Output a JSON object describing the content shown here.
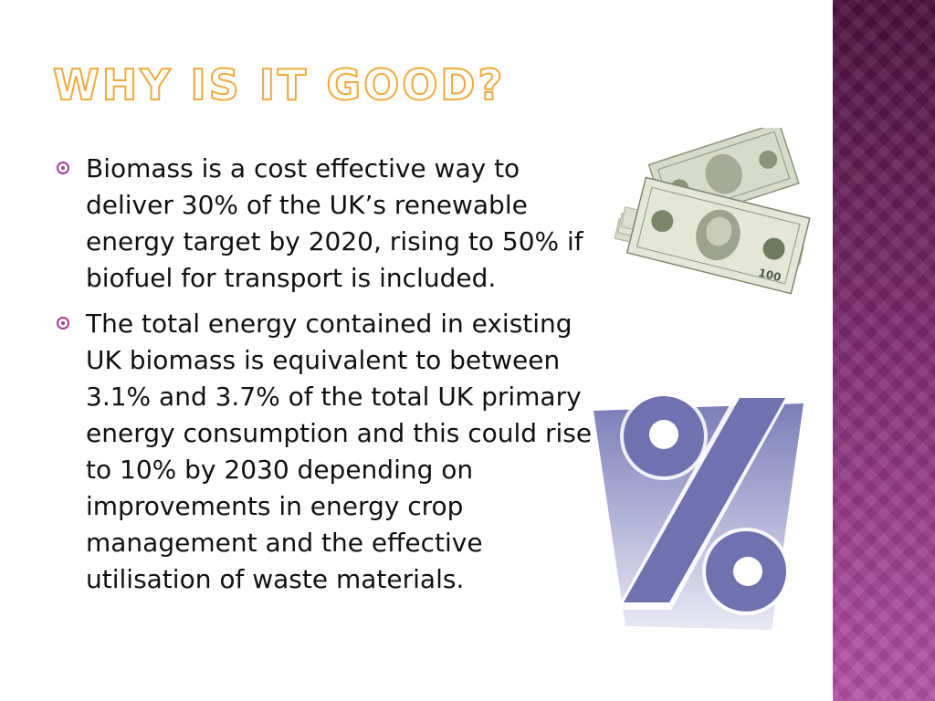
{
  "slide": {
    "title": "WHY IS IT GOOD?",
    "bullets": [
      "Biomass is a cost effective way to deliver 30% of the UK’s renewable energy target by 2020, rising to 50% if biofuel for transport is included.",
      "The total energy contained in existing UK biomass is equivalent to between 3.1% and 3.7% of the total UK primary energy consumption and this could rise to 10% by 2030 depending on improvements in energy crop management and the effective utilisation of waste materials."
    ]
  },
  "colors": {
    "title_outline": "#f2a93b",
    "bullet_marker": "#b0389a",
    "side_band_top": "#4a0f3d",
    "side_band_bottom": "#b552a6",
    "percent_fill": "#7072b0"
  },
  "images": {
    "money_stack": "dollar-bills-icon",
    "percent_symbol": "percent-icon"
  }
}
